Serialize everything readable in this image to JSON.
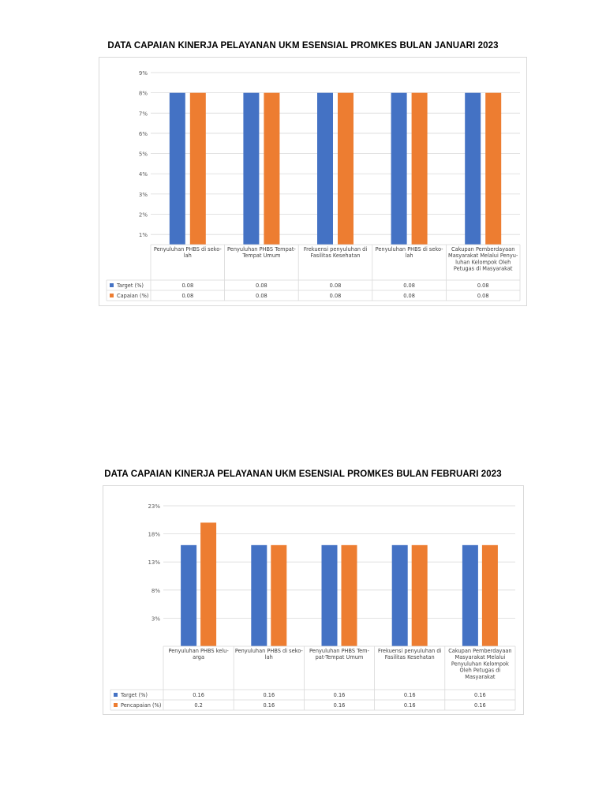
{
  "chart_data": [
    {
      "type": "bar",
      "title": "DATA CAPAIAN KINERJA PELAYANAN UKM ESENSIAL PROMKES BULAN JANUARI 2023",
      "categories": [
        [
          "Penyuluhan PHBS di seko-",
          "lah"
        ],
        [
          "Penyuluhan PHBS Tempat-",
          "Tempat Umum"
        ],
        [
          "Frekuensi penyuluhan di",
          "Fasilitas Kesehatan"
        ],
        [
          "Penyuluhan PHBS di seko-",
          "lah"
        ],
        [
          "Cakupan Pemberdayaan",
          "Masyarakat Melalui Penyu-",
          "luhan Kelompok Oleh",
          "Petugas di Masyarakat"
        ]
      ],
      "y_ticks": [
        "1%",
        "2%",
        "3%",
        "4%",
        "5%",
        "6%",
        "7%",
        "8%",
        "9%"
      ],
      "ylim": [
        0.005,
        0.09
      ],
      "series": [
        {
          "name": "Target (%)",
          "color": "#4472c4",
          "values": [
            0.08,
            0.08,
            0.08,
            0.08,
            0.08
          ],
          "labels": [
            "0.08",
            "0.08",
            "0.08",
            "0.08",
            "0.08"
          ]
        },
        {
          "name": "Capaian (%)",
          "color": "#ed7d31",
          "values": [
            0.08,
            0.08,
            0.08,
            0.08,
            0.08
          ],
          "labels": [
            "0.08",
            "0.08",
            "0.08",
            "0.08",
            "0.08"
          ]
        }
      ],
      "grid": true,
      "legend": "data-table"
    },
    {
      "type": "bar",
      "title": "DATA CAPAIAN KINERJA PELAYANAN UKM ESENSIAL PROMKES BULAN FEBRUARI 2023",
      "categories": [
        [
          "Penyuluhan PHBS kelu-",
          "arga"
        ],
        [
          "Penyuluhan PHBS di seko-",
          "lah"
        ],
        [
          "Penyuluhan PHBS Tem-",
          "pat-Tempat Umum"
        ],
        [
          "Frekuensi penyuluhan di",
          "Fasilitas Kesehatan"
        ],
        [
          "Cakupan Pemberdayaan",
          "Masyarakat Melalui",
          "Penyuluhan Kelompok",
          "Oleh Petugas di",
          "Masyarakat"
        ]
      ],
      "y_ticks": [
        "3%",
        "8%",
        "13%",
        "18%",
        "23%"
      ],
      "ylim": [
        -0.02,
        0.23
      ],
      "series": [
        {
          "name": "Target (%)",
          "color": "#4472c4",
          "values": [
            0.16,
            0.16,
            0.16,
            0.16,
            0.16
          ],
          "labels": [
            "0.16",
            "0.16",
            "0.16",
            "0.16",
            "0.16"
          ]
        },
        {
          "name": "Pencapaian (%)",
          "color": "#ed7d31",
          "values": [
            0.2,
            0.16,
            0.16,
            0.16,
            0.16
          ],
          "labels": [
            "0.2",
            "0.16",
            "0.16",
            "0.16",
            "0.16"
          ]
        }
      ],
      "grid": true,
      "legend": "data-table"
    }
  ]
}
